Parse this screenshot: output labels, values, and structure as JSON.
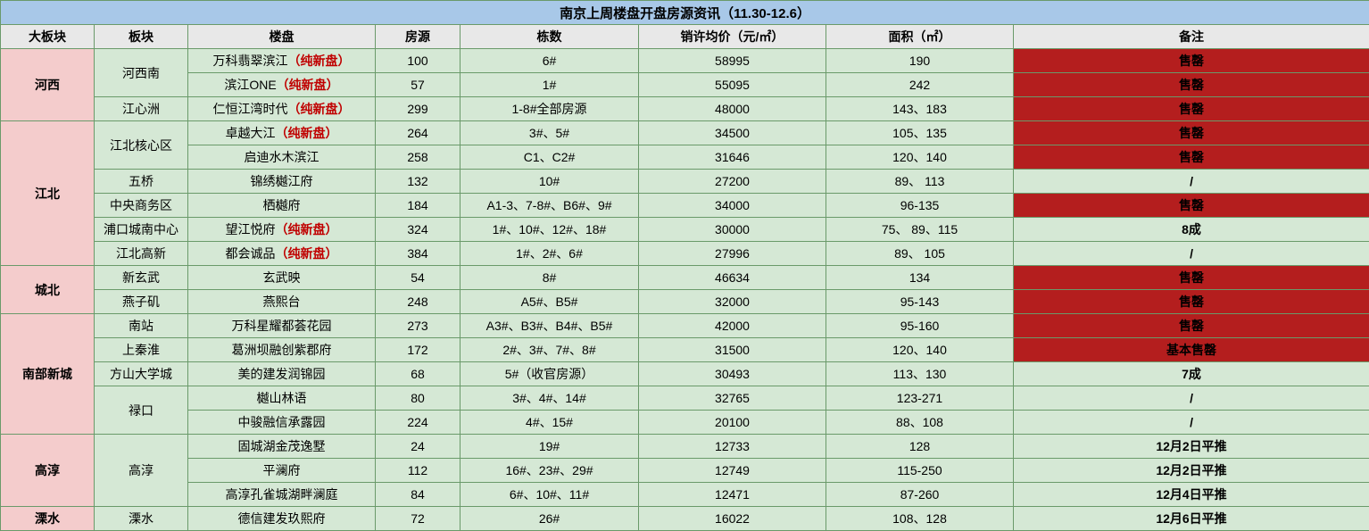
{
  "title": "南京上周楼盘开盘房源资讯（11.30-12.6）",
  "headers": [
    "大板块",
    "板块",
    "楼盘",
    "房源",
    "栋数",
    "销许均价（元/㎡）",
    "面积（㎡）",
    "备注"
  ],
  "new_tag": "（纯新盘）",
  "colors": {
    "title_bg": "#a8c8e8",
    "header_bg": "#e8e8e8",
    "big_district_bg": "#f4cccc",
    "cell_bg": "#d5e8d5",
    "sold_out_bg": "#b41e1e",
    "border": "#6a9a6a",
    "new_tag_color": "#c00000"
  },
  "big_districts": [
    {
      "name": "河西",
      "rowspan": 3
    },
    {
      "name": "江北",
      "rowspan": 6
    },
    {
      "name": "城北",
      "rowspan": 2
    },
    {
      "name": "南部新城",
      "rowspan": 5
    },
    {
      "name": "高淳",
      "rowspan": 3
    },
    {
      "name": "溧水",
      "rowspan": 1
    }
  ],
  "sub_districts": [
    {
      "name": "河西南",
      "rowspan": 2,
      "at_row": 0
    },
    {
      "name": "江心洲",
      "rowspan": 1,
      "at_row": 2
    },
    {
      "name": "江北核心区",
      "rowspan": 2,
      "at_row": 3
    },
    {
      "name": "五桥",
      "rowspan": 1,
      "at_row": 5
    },
    {
      "name": "中央商务区",
      "rowspan": 1,
      "at_row": 6
    },
    {
      "name": "浦口城南中心",
      "rowspan": 1,
      "at_row": 7
    },
    {
      "name": "江北高新",
      "rowspan": 1,
      "at_row": 8
    },
    {
      "name": "新玄武",
      "rowspan": 1,
      "at_row": 9
    },
    {
      "name": "燕子矶",
      "rowspan": 1,
      "at_row": 10
    },
    {
      "name": "南站",
      "rowspan": 1,
      "at_row": 11
    },
    {
      "name": "上秦淮",
      "rowspan": 1,
      "at_row": 12
    },
    {
      "name": "方山大学城",
      "rowspan": 1,
      "at_row": 13
    },
    {
      "name": "禄口",
      "rowspan": 2,
      "at_row": 14
    },
    {
      "name": "高淳",
      "rowspan": 3,
      "at_row": 16
    },
    {
      "name": "溧水",
      "rowspan": 1,
      "at_row": 19
    }
  ],
  "rows": [
    {
      "project": "万科翡翠滨江",
      "new": true,
      "units": "100",
      "buildings": "6#",
      "price": "58995",
      "area": "190",
      "remark": "售罄",
      "remark_style": "red"
    },
    {
      "project": "滨江ONE",
      "new": true,
      "units": "57",
      "buildings": "1#",
      "price": "55095",
      "area": "242",
      "remark": "售罄",
      "remark_style": "red"
    },
    {
      "project": "仁恒江湾时代",
      "new": true,
      "units": "299",
      "buildings": "1-8#全部房源",
      "price": "48000",
      "area": "143、183",
      "remark": "售罄",
      "remark_style": "red"
    },
    {
      "project": "卓越大江",
      "new": true,
      "units": "264",
      "buildings": "3#、5#",
      "price": "34500",
      "area": "105、135",
      "remark": "售罄",
      "remark_style": "red"
    },
    {
      "project": "启迪水木滨江",
      "new": false,
      "units": "258",
      "buildings": "C1、C2#",
      "price": "31646",
      "area": "120、140",
      "remark": "售罄",
      "remark_style": "red"
    },
    {
      "project": "锦绣樾江府",
      "new": false,
      "units": "132",
      "buildings": "10#",
      "price": "27200",
      "area": "89、 113",
      "remark": "/",
      "remark_style": "normal"
    },
    {
      "project": "栖樾府",
      "new": false,
      "units": "184",
      "buildings": "A1-3、7-8#、B6#、9#",
      "price": "34000",
      "area": "96-135",
      "remark": "售罄",
      "remark_style": "red"
    },
    {
      "project": "望江悦府",
      "new": true,
      "units": "324",
      "buildings": "1#、10#、12#、18#",
      "price": "30000",
      "area": "75、 89、115",
      "remark": "8成",
      "remark_style": "normal"
    },
    {
      "project": "都会诚品",
      "new": true,
      "units": "384",
      "buildings": "1#、2#、6#",
      "price": "27996",
      "area": "89、 105",
      "remark": "/",
      "remark_style": "normal"
    },
    {
      "project": "玄武映",
      "new": false,
      "units": "54",
      "buildings": "8#",
      "price": "46634",
      "area": "134",
      "remark": "售罄",
      "remark_style": "red"
    },
    {
      "project": "燕熙台",
      "new": false,
      "units": "248",
      "buildings": "A5#、B5#",
      "price": "32000",
      "area": "95-143",
      "remark": "售罄",
      "remark_style": "red"
    },
    {
      "project": "万科星耀都荟花园",
      "new": false,
      "units": "273",
      "buildings": "A3#、B3#、B4#、B5#",
      "price": "42000",
      "area": "95-160",
      "remark": "售罄",
      "remark_style": "red"
    },
    {
      "project": "葛洲坝融创紫郡府",
      "new": false,
      "units": "172",
      "buildings": "2#、3#、7#、8#",
      "price": "31500",
      "area": "120、140",
      "remark": "基本售罄",
      "remark_style": "red"
    },
    {
      "project": "美的建发润锦园",
      "new": false,
      "units": "68",
      "buildings": "5#（收官房源）",
      "price": "30493",
      "area": "113、130",
      "remark": "7成",
      "remark_style": "normal"
    },
    {
      "project": "樾山林语",
      "new": false,
      "units": "80",
      "buildings": "3#、4#、14#",
      "price": "32765",
      "area": "123-271",
      "remark": "/",
      "remark_style": "normal"
    },
    {
      "project": "中骏融信承露园",
      "new": false,
      "units": "224",
      "buildings": "4#、15#",
      "price": "20100",
      "area": "88、108",
      "remark": "/",
      "remark_style": "normal"
    },
    {
      "project": "固城湖金茂逸墅",
      "new": false,
      "units": "24",
      "buildings": "19#",
      "price": "12733",
      "area": "128",
      "remark": "12月2日平推",
      "remark_style": "normal"
    },
    {
      "project": "平澜府",
      "new": false,
      "units": "112",
      "buildings": "16#、23#、29#",
      "price": "12749",
      "area": "115-250",
      "remark": "12月2日平推",
      "remark_style": "normal"
    },
    {
      "project": "高淳孔雀城湖畔澜庭",
      "new": false,
      "units": "84",
      "buildings": "6#、10#、11#",
      "price": "12471",
      "area": "87-260",
      "remark": "12月4日平推",
      "remark_style": "normal"
    },
    {
      "project": "德信建发玖熙府",
      "new": false,
      "units": "72",
      "buildings": "26#",
      "price": "16022",
      "area": "108、128",
      "remark": "12月6日平推",
      "remark_style": "normal"
    }
  ]
}
